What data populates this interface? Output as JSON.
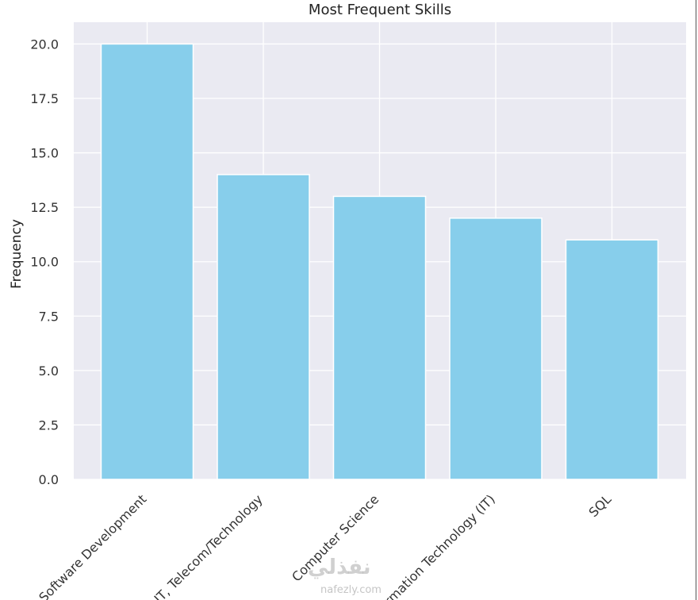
{
  "chart_data": {
    "type": "bar",
    "title": "Most Frequent Skills",
    "xlabel": "",
    "ylabel": "Frequency",
    "categories": [
      "Software Development",
      "IT, Telecom/Technology",
      "Computer Science",
      "Information Technology (IT)",
      "SQL"
    ],
    "values": [
      20,
      14,
      13,
      12,
      11
    ],
    "ylim": [
      0,
      21
    ],
    "yticks": [
      "0.0",
      "2.5",
      "5.0",
      "7.5",
      "10.0",
      "12.5",
      "15.0",
      "17.5",
      "20.0"
    ],
    "grid": true,
    "colors": {
      "bar": "#87CEEB",
      "plot_bg": "#EAEAF2",
      "grid": "#FFFFFF",
      "text": "#333333"
    }
  },
  "watermark": {
    "logo": "نفذلي",
    "domain": "nafezly.com"
  }
}
